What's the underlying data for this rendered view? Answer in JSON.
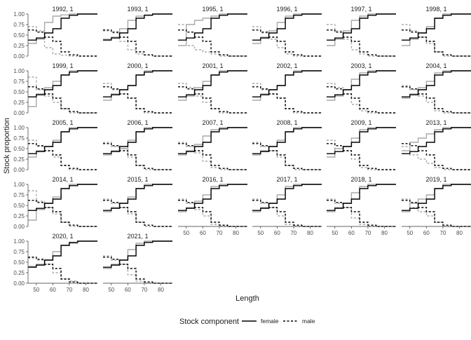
{
  "chart_data": {
    "type": "line",
    "subtype": "step",
    "facet_layout": "wrap",
    "ylabel": "Stock proportion",
    "xlabel": "Length",
    "xlim": [
      45,
      87
    ],
    "ylim": [
      0,
      1
    ],
    "x_ticks": [
      50,
      60,
      70,
      80
    ],
    "y_ticks": [
      "0.00",
      "0.25",
      "0.50",
      "0.75",
      "1.00"
    ],
    "legend": {
      "title": "Stock component",
      "position": "bottom",
      "entries": [
        "female",
        "male"
      ]
    },
    "colors": {
      "observed": "#aaaaaa",
      "fitted": "#000000"
    },
    "x": [
      45,
      50,
      55,
      60,
      65,
      70,
      75,
      80,
      87
    ],
    "curves": {
      "base": [
        0.38,
        0.43,
        0.55,
        0.65,
        0.9,
        0.97,
        1.0,
        1.0,
        1.0
      ],
      "obs_1992": [
        0.3,
        0.4,
        0.8,
        0.95,
        0.98,
        1.0,
        1.0,
        1.0,
        1.0
      ],
      "obs_1993": [
        0.4,
        0.45,
        0.65,
        0.85,
        0.95,
        0.98,
        1.0,
        1.0,
        1.0
      ],
      "obs_1995": [
        0.25,
        0.75,
        0.85,
        0.9,
        0.95,
        1.0,
        1.0,
        1.0,
        1.0
      ],
      "obs_1996": [
        0.3,
        0.45,
        0.6,
        0.8,
        0.95,
        1.0,
        1.0,
        1.0,
        1.0
      ],
      "obs_1997": [
        0.25,
        0.4,
        0.6,
        0.85,
        0.95,
        1.0,
        1.0,
        1.0,
        1.0
      ],
      "obs_1998": [
        0.25,
        0.4,
        0.55,
        0.7,
        0.9,
        1.0,
        1.0,
        1.0,
        1.0
      ],
      "obs_1999": [
        0.15,
        0.45,
        0.6,
        0.75,
        0.9,
        1.0,
        1.0,
        1.0,
        1.0
      ],
      "obs_2000": [
        0.3,
        0.45,
        0.55,
        0.65,
        0.9,
        1.0,
        1.0,
        1.0,
        1.0
      ],
      "obs_2001": [
        0.3,
        0.4,
        0.6,
        0.75,
        0.9,
        1.0,
        1.0,
        1.0,
        1.0
      ],
      "obs_2002": [
        0.3,
        0.45,
        0.55,
        0.65,
        0.9,
        1.0,
        1.0,
        1.0,
        1.0
      ],
      "obs_2003": [
        0.3,
        0.4,
        0.55,
        0.8,
        0.95,
        1.0,
        1.0,
        1.0,
        1.0
      ],
      "obs_2004": [
        0.35,
        0.45,
        0.6,
        0.75,
        0.95,
        1.0,
        1.0,
        1.0,
        1.0
      ],
      "obs_2005": [
        0.3,
        0.45,
        0.55,
        0.7,
        0.9,
        1.0,
        1.0,
        1.0,
        1.0
      ],
      "obs_2006": [
        0.35,
        0.45,
        0.5,
        0.7,
        0.9,
        1.0,
        1.0,
        1.0,
        1.0
      ],
      "obs_2007": [
        0.35,
        0.45,
        0.6,
        0.8,
        0.95,
        1.0,
        1.0,
        1.0,
        1.0
      ],
      "obs_2008": [
        0.35,
        0.45,
        0.55,
        0.7,
        0.9,
        1.0,
        1.0,
        1.0,
        1.0
      ],
      "obs_2009": [
        0.3,
        0.5,
        0.55,
        0.75,
        0.95,
        1.0,
        1.0,
        1.0,
        1.0
      ],
      "obs_2013": [
        0.45,
        0.65,
        0.75,
        0.85,
        0.95,
        1.0,
        1.0,
        1.0,
        1.0
      ],
      "obs_2014": [
        0.15,
        0.4,
        0.55,
        0.7,
        0.9,
        1.0,
        1.0,
        1.0,
        1.0
      ],
      "obs_2015": [
        0.35,
        0.45,
        0.55,
        0.7,
        0.9,
        1.0,
        1.0,
        1.0,
        1.0
      ],
      "obs_2016": [
        0.35,
        0.45,
        0.6,
        0.75,
        0.95,
        1.0,
        1.0,
        1.0,
        1.0
      ],
      "obs_2017": [
        0.35,
        0.45,
        0.55,
        0.75,
        0.95,
        1.0,
        1.0,
        1.0,
        1.0
      ],
      "obs_2018": [
        0.35,
        0.45,
        0.55,
        0.8,
        0.95,
        1.0,
        1.0,
        1.0,
        1.0
      ],
      "obs_2019": [
        0.35,
        0.55,
        0.65,
        0.75,
        0.9,
        1.0,
        1.0,
        1.0,
        1.0
      ],
      "obs_2020": [
        0.4,
        0.45,
        0.55,
        0.75,
        0.9,
        0.95,
        1.0,
        1.0,
        1.0
      ],
      "obs_2021": [
        0.35,
        0.45,
        0.55,
        0.8,
        0.95,
        1.0,
        1.0,
        1.0,
        1.0
      ]
    },
    "panels": [
      {
        "title": "1992, 1",
        "obs": "obs_1992"
      },
      {
        "title": "1993, 1",
        "obs": "obs_1993"
      },
      {
        "title": "1995, 1",
        "obs": "obs_1995"
      },
      {
        "title": "1996, 1",
        "obs": "obs_1996"
      },
      {
        "title": "1997, 1",
        "obs": "obs_1997"
      },
      {
        "title": "1998, 1",
        "obs": "obs_1998"
      },
      {
        "title": "1999, 1",
        "obs": "obs_1999"
      },
      {
        "title": "2000, 1",
        "obs": "obs_2000"
      },
      {
        "title": "2001, 1",
        "obs": "obs_2001"
      },
      {
        "title": "2002, 1",
        "obs": "obs_2002"
      },
      {
        "title": "2003, 1",
        "obs": "obs_2003"
      },
      {
        "title": "2004, 1",
        "obs": "obs_2004"
      },
      {
        "title": "2005, 1",
        "obs": "obs_2005"
      },
      {
        "title": "2006, 1",
        "obs": "obs_2006"
      },
      {
        "title": "2007, 1",
        "obs": "obs_2007"
      },
      {
        "title": "2008, 1",
        "obs": "obs_2008"
      },
      {
        "title": "2009, 1",
        "obs": "obs_2009"
      },
      {
        "title": "2013, 1",
        "obs": "obs_2013"
      },
      {
        "title": "2014, 1",
        "obs": "obs_2014"
      },
      {
        "title": "2015, 1",
        "obs": "obs_2015"
      },
      {
        "title": "2016, 1",
        "obs": "obs_2016"
      },
      {
        "title": "2017, 1",
        "obs": "obs_2017"
      },
      {
        "title": "2018, 1",
        "obs": "obs_2018"
      },
      {
        "title": "2019, 1",
        "obs": "obs_2019"
      },
      {
        "title": "2020, 1",
        "obs": "obs_2020"
      },
      {
        "title": "2021, 1",
        "obs": "obs_2021"
      }
    ]
  }
}
